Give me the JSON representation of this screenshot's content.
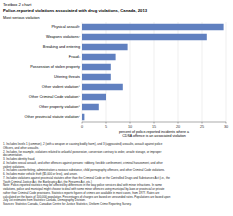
{
  "chart_data": {
    "type": "bar",
    "orientation": "horizontal",
    "title": "Textbox 2 chart",
    "subtitle": "Police-reported violations associated with drug violations, Canada, 2013",
    "y_label": "Most serious violation",
    "x_label": "percent of police-reported incidents where a\nCDSA offence is an associated violation",
    "categories": [
      "Other provincial statute violation⁷",
      "Other property violation⁶",
      "Other Criminal Code violation⁵",
      "Other violent violation⁴",
      "Uttering threats",
      "Possession of stolen property",
      "Fraud³",
      "Breaking and entering",
      "Weapons violations²",
      "Physical assault¹"
    ],
    "values": [
      0.5,
      3.5,
      5.0,
      8.5,
      6.0,
      6.0,
      7.0,
      9.5,
      26.0,
      29.5
    ],
    "color": "#6080c0",
    "xlim": [
      0,
      30
    ],
    "xticks": [
      0,
      5,
      10,
      15,
      20,
      25,
      30
    ],
    "grid": true,
    "annotations": [
      "1. Includes levels 1 (common), 2 (with a weapon or causing bodily harm), and 3 (aggravated) assaults, assault against police\nOfficers, and other assaults.\n2. Includes, for example, violations related to unlawful possession, conversion contrary to order, unsafe storage, or improper\ndocumentation.\n3. Includes identity fraud.\n4. Includes sexual assault, and other offences against persons: robbery, forcible confinement, criminal harassment, and other\nviolent violations.\n5. Includes counterfeiting, administration a noxious substance, child pornography offences, and other Criminal Code violations.\n6. Includes motor vehicle theft ($5,000 or less), and arson.\n7. Includes violations against provincial statutes other than the Criminal Code or the Controlled Drugs and Substances Act (i.e., the\nYouth Criminal Justice Act, the Bankruptcy Act, the Firearms Act, etc.)\nNote: Police-reported statistics may be affected by differences in the way police services deal with minor infractions. In some\nviolations, police and municipal might choose to deal with some minor offences using municipal by-laws or provincial or private\nrather than Criminal Code provisions. Statistics reports figures of crimes are available in most cases, from 1977. Rates are\ncalculated on the basis of 100,000 population. Percentages of charges are based on unrounded rates. Populations are based upon\nJuly 1st estimates from Statistics Canada, Demography Division.\nSources: Statistics Canada, Canadian Centre for Justice Statistics, Uniform Crime Reporting Survey."
    ]
  }
}
